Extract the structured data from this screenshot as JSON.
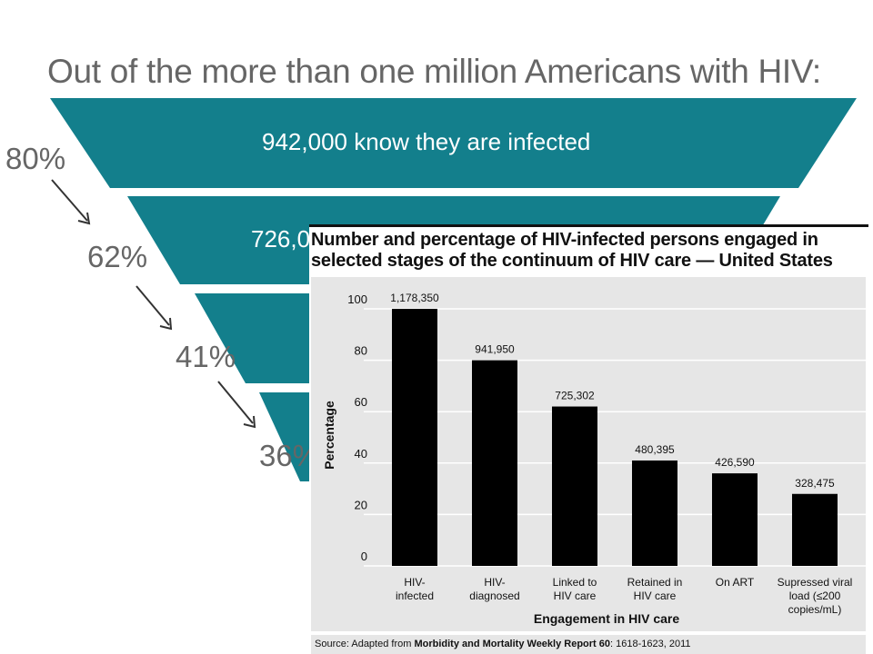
{
  "funnel": {
    "title": "Out of the more than one million Americans with HIV:",
    "bands": [
      {
        "text": "942,000 know they are infected"
      },
      {
        "text": "726,0"
      }
    ],
    "percents": [
      "80%",
      "62%",
      "41%",
      "36%"
    ],
    "colors": {
      "band": "#137f8c",
      "text": "#666666"
    }
  },
  "chart_data": {
    "type": "bar",
    "title": "Number and percentage of HIV-infected persons engaged in selected stages of the continuum of HIV care — United States",
    "xlabel": "Engagement in HIV care",
    "ylabel": "Percentage",
    "ylim": [
      0,
      100
    ],
    "yticks": [
      0,
      20,
      40,
      60,
      80,
      100
    ],
    "grid": true,
    "categories": [
      [
        "HIV-",
        "infected"
      ],
      [
        "HIV-",
        "diagnosed"
      ],
      [
        "Linked to",
        "HIV care"
      ],
      [
        "Retained in",
        "HIV care"
      ],
      [
        "On ART"
      ],
      [
        "Supressed viral",
        "load (≤200",
        "copies/mL)"
      ]
    ],
    "values": [
      100,
      80,
      62,
      41,
      36,
      28
    ],
    "data_labels": [
      "1,178,350",
      "941,950",
      "725,302",
      "480,395",
      "426,590",
      "328,475"
    ],
    "bar_color": "#000000"
  },
  "source": {
    "prefix": "Source: Adapted from ",
    "bold": "Morbidity and Mortality Weekly Report 60",
    "suffix": ": 1618-1623, 2011"
  }
}
